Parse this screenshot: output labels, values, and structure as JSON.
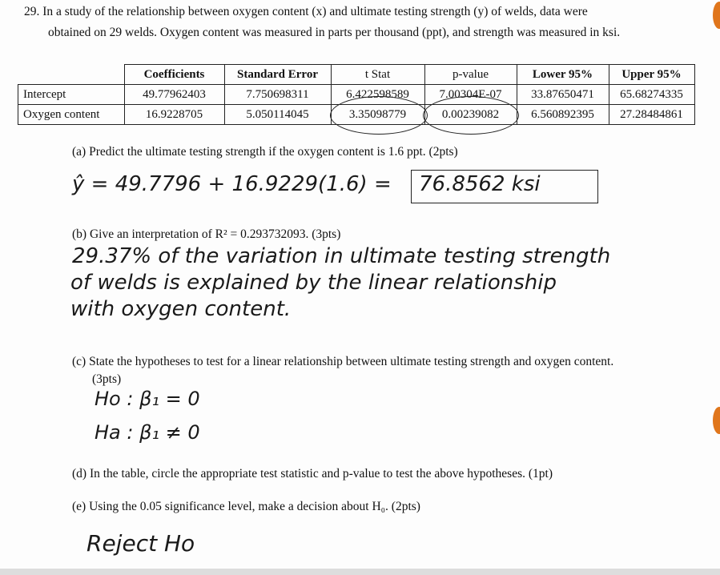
{
  "question": {
    "line1": "29.  In a study of the relationship between oxygen content (x) and ultimate testing strength (y) of welds, data were",
    "line2": "obtained on 29 welds. Oxygen content was measured in parts per thousand (ppt), and strength was measured in ksi."
  },
  "table": {
    "headers": [
      "",
      "Coefficients",
      "Standard Error",
      "t Stat",
      "p-value",
      "Lower 95%",
      "Upper 95%"
    ],
    "rows": [
      [
        "Intercept",
        "49.77962403",
        "7.750698311",
        "6.422598589",
        "7.00304E-07",
        "33.87650471",
        "65.68274335"
      ],
      [
        "Oxygen content",
        "16.9228705",
        "5.050114045",
        "3.35098779",
        "0.00239082",
        "6.560892395",
        "27.28484861"
      ]
    ]
  },
  "parts": {
    "a": {
      "q": "(a)  Predict the ultimate testing strength if the oxygen content is 1.6 ppt. (2pts)",
      "answer": "ŷ = 49.7796 + 16.9229(1.6) =",
      "boxed": "76.8562 ksi"
    },
    "b": {
      "q": "(b)  Give an interpretation of R² = 0.293732093. (3pts)",
      "answer": [
        "29.37% of the variation in ultimate testing strength",
        "of welds is explained by the linear relationship",
        "with oxygen content."
      ]
    },
    "c": {
      "q1": "(c)  State the hypotheses to test for a linear relationship between ultimate testing strength and oxygen content.",
      "q2": "(3pts)",
      "h0": "Ho : β₁ = 0",
      "ha": "Ha : β₁ ≠ 0"
    },
    "d": {
      "q": "(d)  In the table, circle the appropriate test statistic and p-value to test the above hypotheses. (1pt)"
    },
    "e": {
      "q": "(e)  Using the 0.05 significance level, make a decision about H₀. (2pts)",
      "answer": "Reject Ho"
    }
  },
  "colors": {
    "marker": "#e0761c"
  }
}
